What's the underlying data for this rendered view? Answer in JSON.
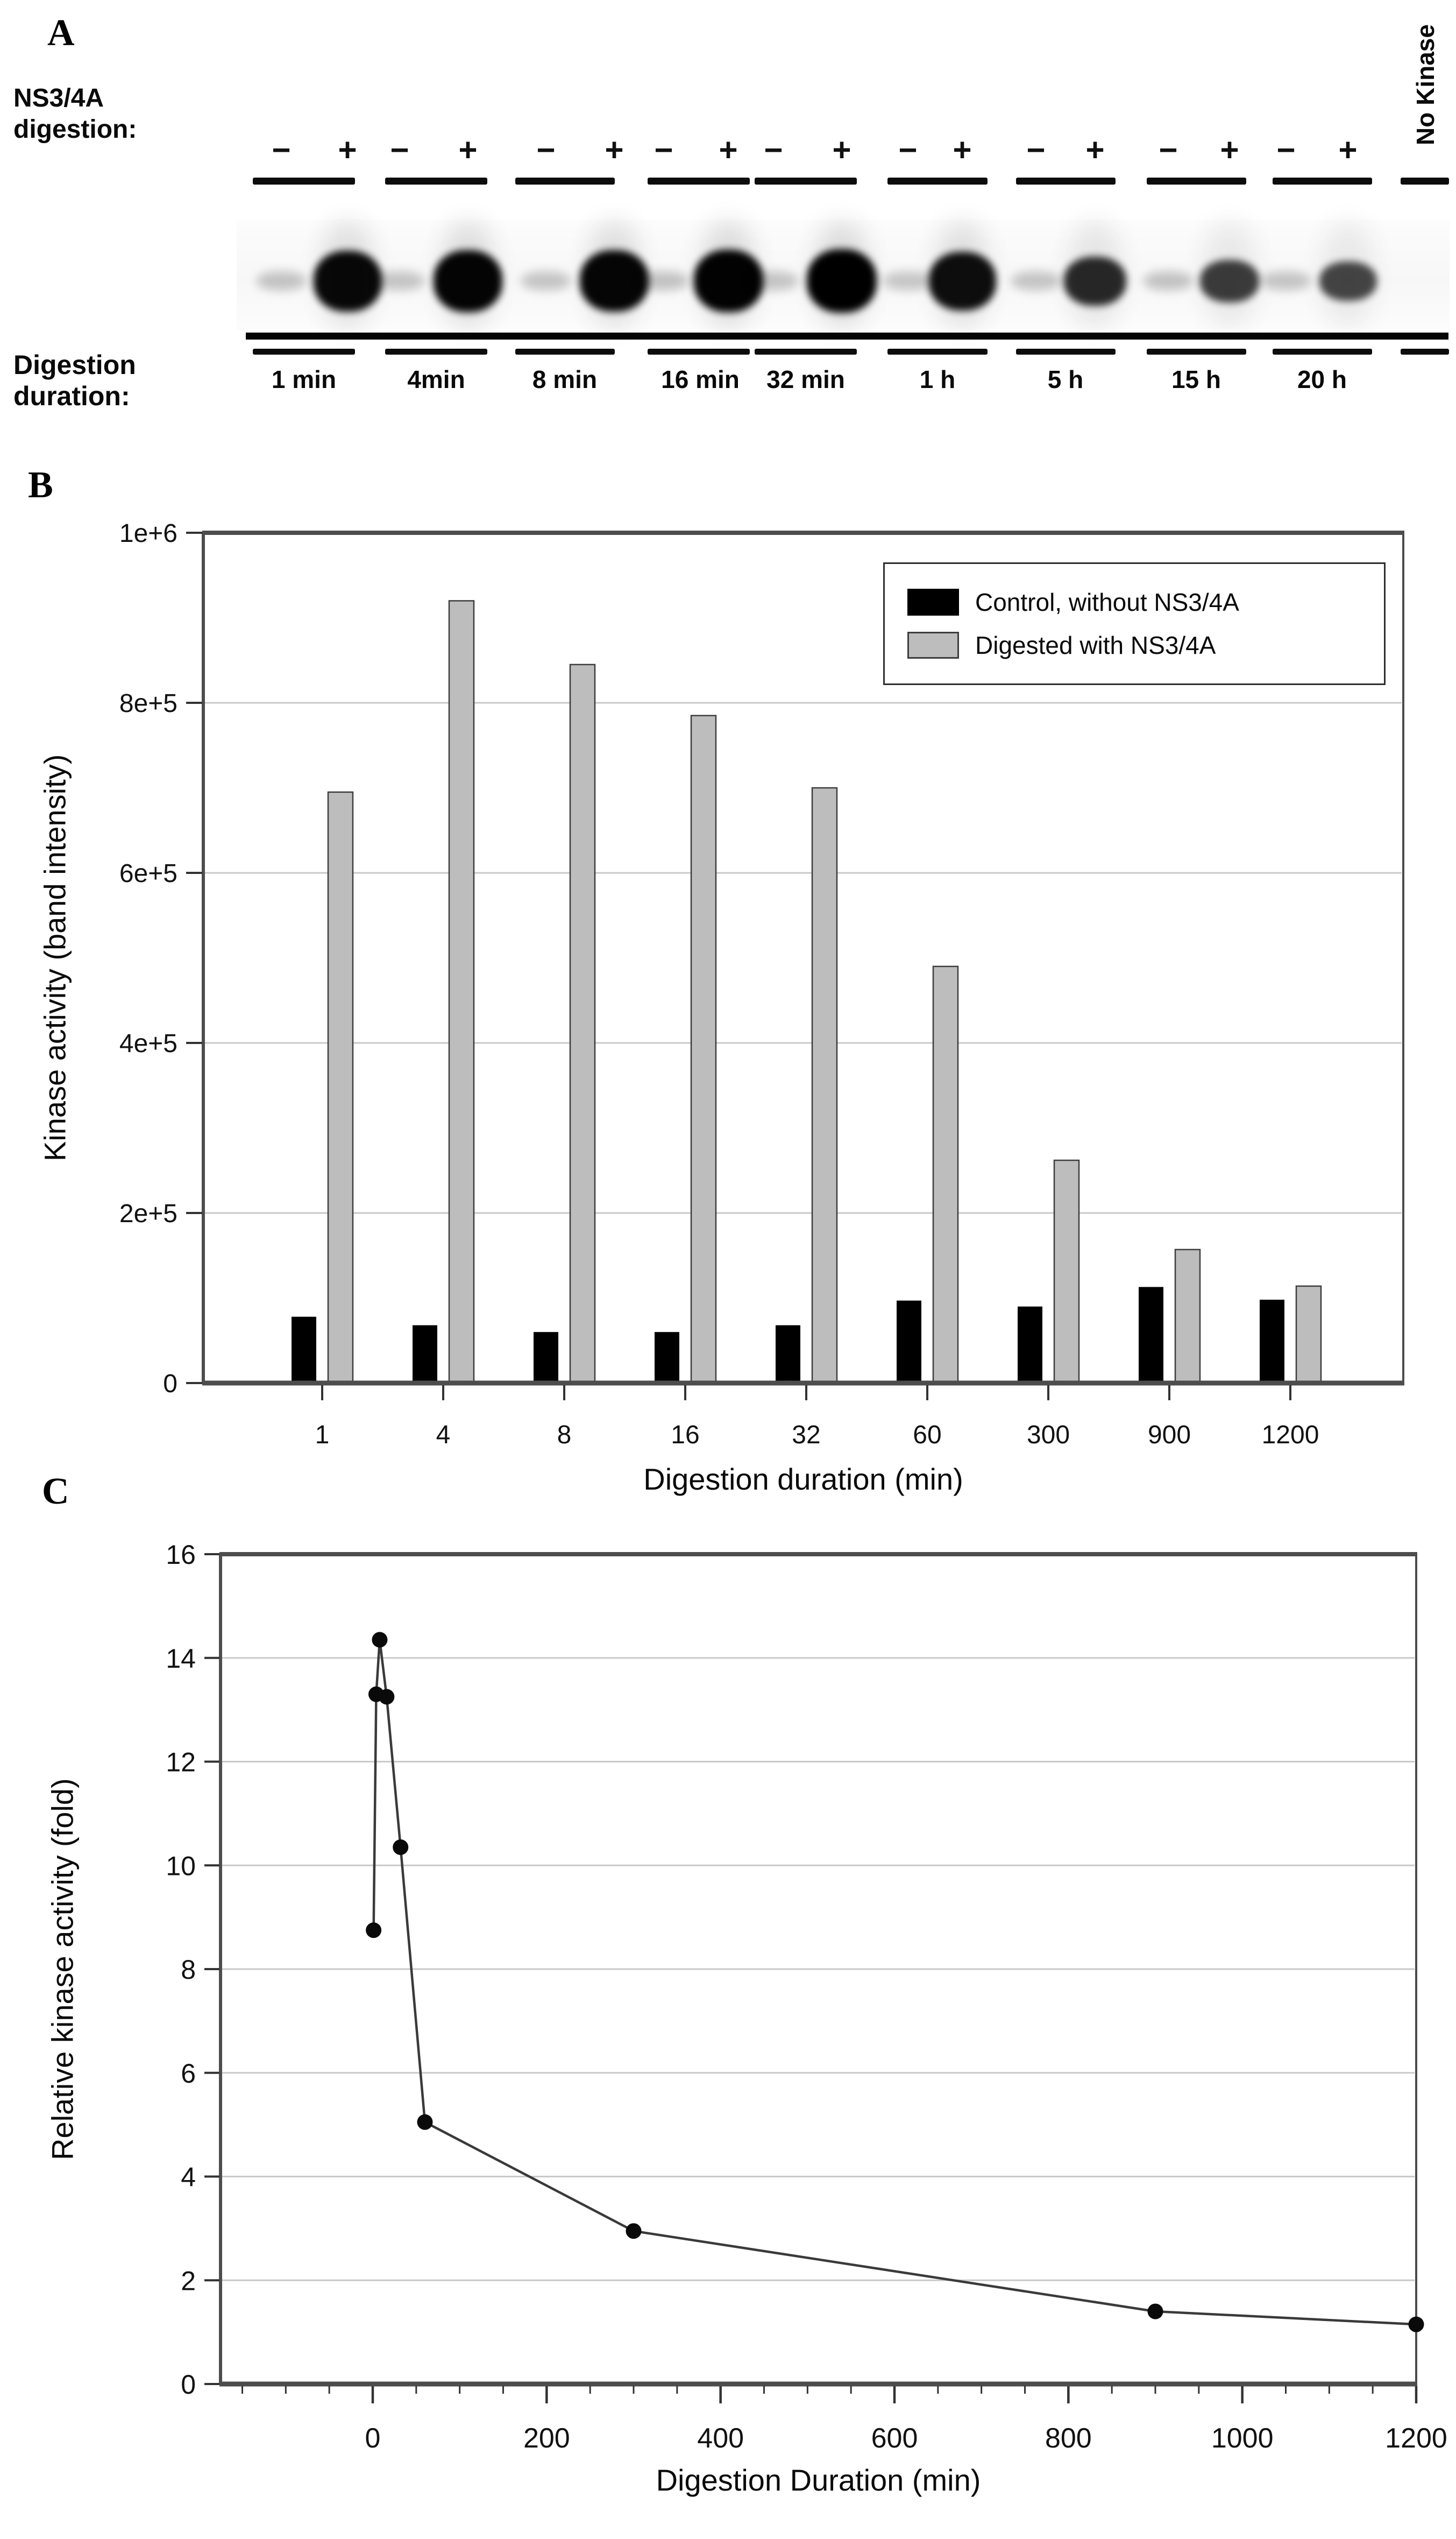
{
  "figure": {
    "panelA": {
      "label": "A",
      "digestion_row_label_line1": "NS3/4A",
      "digestion_row_label_line2": "digestion:",
      "minus_sign": "−",
      "plus_sign": "+",
      "no_kinase_label": "No Kinase",
      "duration_row_label_line1": "Digestion",
      "duration_row_label_line2": "duration:",
      "lane_durations": [
        "1 min",
        "4min",
        "8 min",
        "16 min",
        "32 min",
        "1 h",
        "5 h",
        "15 h",
        "20 h"
      ],
      "band_intensity_plus": [
        0.93,
        0.96,
        0.95,
        0.98,
        1.0,
        0.88,
        0.66,
        0.5,
        0.42
      ],
      "band_intensity_minus": [
        0.22,
        0.2,
        0.2,
        0.22,
        0.2,
        0.18,
        0.2,
        0.22,
        0.2
      ],
      "smear_intensity_plus": [
        0.85,
        0.95,
        0.9,
        1.0,
        1.0,
        0.8,
        0.55,
        0.4,
        0.35
      ]
    },
    "panelB": {
      "label": "B"
    },
    "panelC": {
      "label": "C"
    }
  },
  "chart_data": [
    {
      "id": "panel-b",
      "type": "bar",
      "categories": [
        "1",
        "4",
        "8",
        "16",
        "32",
        "60",
        "300",
        "900",
        "1200"
      ],
      "series": [
        {
          "name": "Control, without NS3/4A",
          "color": "#000000",
          "values": [
            78000,
            68000,
            60000,
            60000,
            68000,
            97000,
            90000,
            113000,
            98000
          ]
        },
        {
          "name": "Digested with NS3/4A",
          "color": "#bdbdbd",
          "values": [
            695000,
            920000,
            845000,
            785000,
            700000,
            490000,
            262000,
            157000,
            114000
          ]
        }
      ],
      "xlabel": "Digestion duration (min)",
      "ylabel": "Kinase activity (band intensity)",
      "ylim": [
        0,
        1000000
      ],
      "yticks": [
        {
          "value": 0,
          "label": "0"
        },
        {
          "value": 200000,
          "label": "2e+5"
        },
        {
          "value": 400000,
          "label": "4e+5"
        },
        {
          "value": 600000,
          "label": "6e+5"
        },
        {
          "value": 800000,
          "label": "8e+5"
        },
        {
          "value": 1000000,
          "label": "1e+6"
        }
      ],
      "grid": "horizontal",
      "legend_position": "top-right"
    },
    {
      "id": "panel-c",
      "type": "line",
      "x": [
        1,
        4,
        8,
        16,
        32,
        60,
        300,
        900,
        1200
      ],
      "y": [
        8.75,
        13.3,
        14.35,
        13.25,
        10.35,
        5.05,
        2.95,
        1.4,
        1.15
      ],
      "xlabel": "Digestion Duration (min)",
      "ylabel": "Relative kinase activity (fold)",
      "xlim": [
        -175,
        1200
      ],
      "ylim": [
        0,
        16
      ],
      "xticks": [
        0,
        200,
        400,
        600,
        800,
        1000,
        1200
      ],
      "x_minor_tick_step": 50,
      "yticks": [
        0,
        2,
        4,
        6,
        8,
        10,
        12,
        14,
        16
      ],
      "grid": "horizontal",
      "marker": "filled-circle",
      "line_color": "#3a3a3a",
      "marker_color": "#0a0a0a"
    }
  ]
}
